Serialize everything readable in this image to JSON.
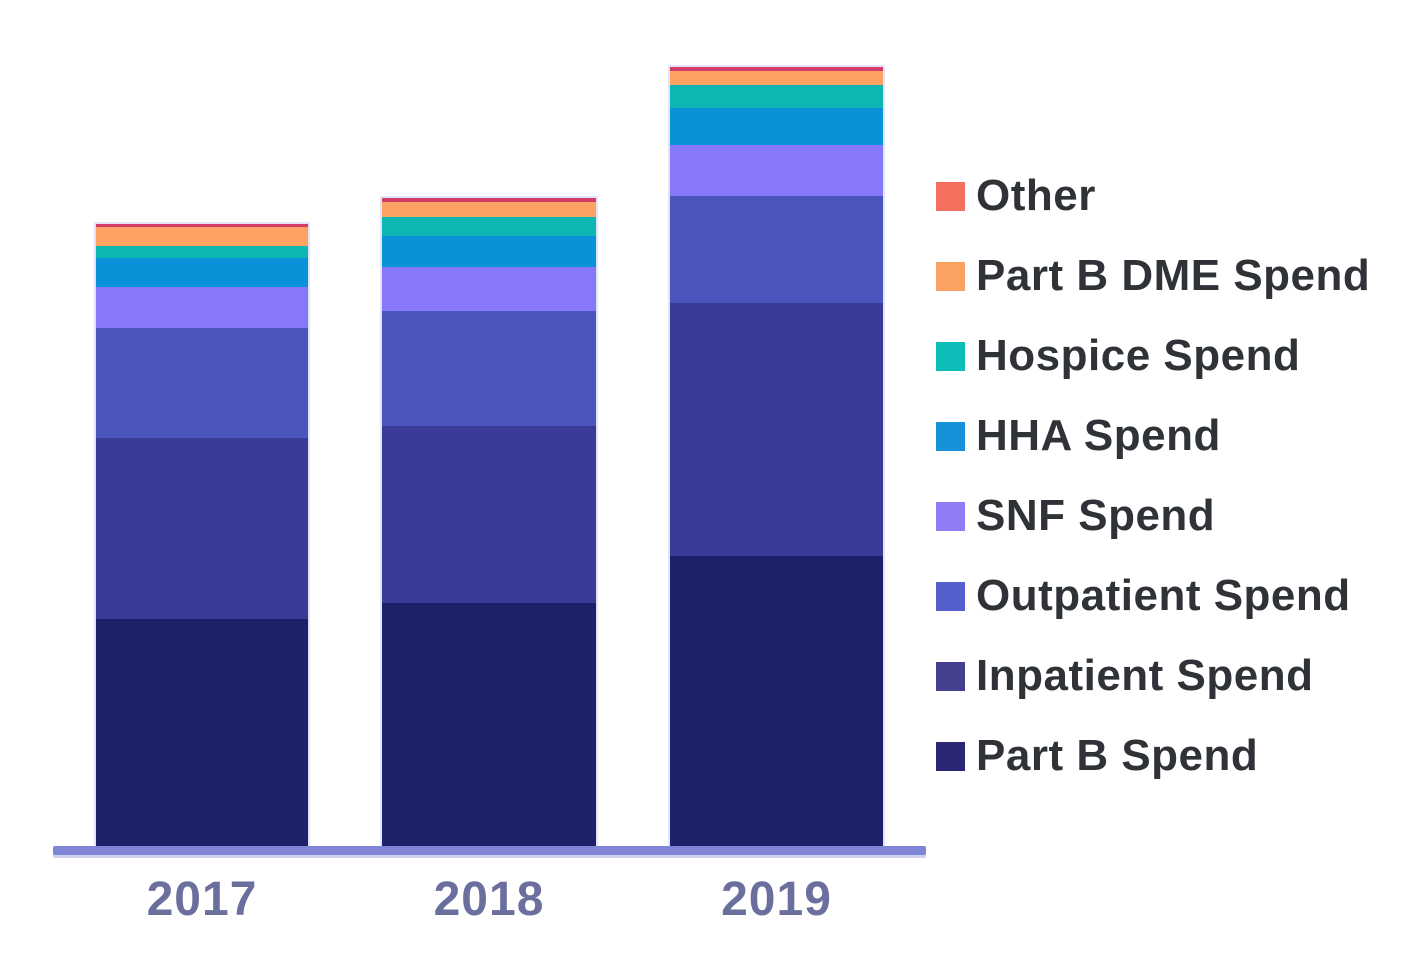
{
  "page": {
    "background": "#ffffff"
  },
  "chart_data": {
    "type": "bar",
    "stacked": true,
    "title": "",
    "categories": [
      "2017",
      "2018",
      "2019"
    ],
    "value_units": "relative segment heights (no y-axis scale shown in image)",
    "legend_position": "right",
    "grid": false,
    "y_axis_visible": false,
    "series": [
      {
        "name": "Other",
        "bar_color": "#d63a6a",
        "legend_color": "#f3705e",
        "values": [
          4,
          5,
          5
        ]
      },
      {
        "name": "Part B DME Spend",
        "bar_color": "#fca263",
        "legend_color": "#f9a261",
        "values": [
          19,
          15,
          14
        ]
      },
      {
        "name": "Hospice Spend",
        "bar_color": "#0cb7b2",
        "legend_color": "#0dbdb8",
        "values": [
          12,
          19,
          23
        ]
      },
      {
        "name": "HHA Spend",
        "bar_color": "#0992d8",
        "legend_color": "#1791d9",
        "values": [
          29,
          31,
          37
        ]
      },
      {
        "name": "SNF Spend",
        "bar_color": "#8678f8",
        "legend_color": "#8f7df8",
        "values": [
          41,
          44,
          51
        ]
      },
      {
        "name": "Outpatient Spend",
        "bar_color": "#4c55be",
        "legend_color": "#5560ce",
        "values": [
          110,
          115,
          107
        ]
      },
      {
        "name": "Inpatient Spend",
        "bar_color": "#3a3a97",
        "legend_color": "#453f90",
        "values": [
          181,
          177,
          253
        ]
      },
      {
        "name": "Part B Spend",
        "bar_color": "#1c2169",
        "legend_color": "#2a2673",
        "values": [
          228,
          244,
          291
        ]
      }
    ],
    "axis": {
      "x_line_color": "#7d85d4",
      "x_label_color": "#6a6f9e",
      "legend_text_color": "#2f3338"
    }
  }
}
